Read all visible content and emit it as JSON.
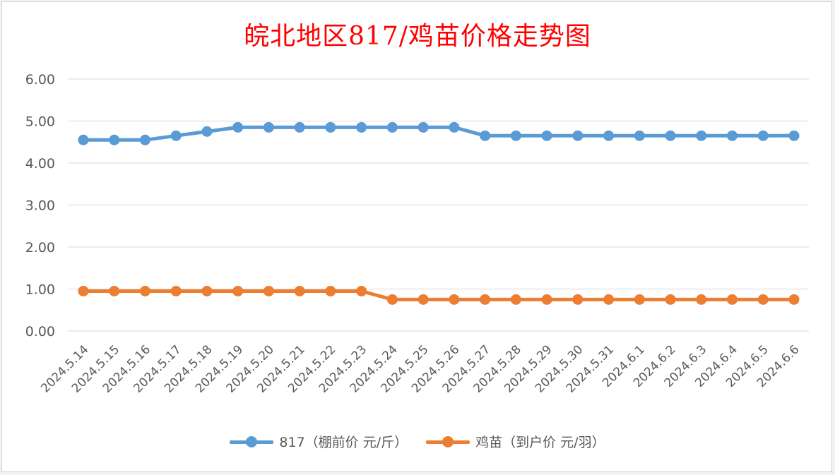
{
  "chart_data": {
    "type": "line",
    "title": "皖北地区817/鸡苗价格走势图",
    "categories": [
      "2024.5.14",
      "2024.5.15",
      "2024.5.16",
      "2024.5.17",
      "2024.5.18",
      "2024.5.19",
      "2024.5.20",
      "2024.5.21",
      "2024.5.22",
      "2024.5.23",
      "2024.5.24",
      "2024.5.25",
      "2024.5.26",
      "2024.5.27",
      "2024.5.28",
      "2024.5.29",
      "2024.5.30",
      "2024.5.31",
      "2024.6.1",
      "2024.6.2",
      "2024.6.3",
      "2024.6.4",
      "2024.6.5",
      "2024.6.6"
    ],
    "y_ticks": [
      "0.00",
      "1.00",
      "2.00",
      "3.00",
      "4.00",
      "5.00",
      "6.00"
    ],
    "ylim": [
      0,
      6
    ],
    "grid": true,
    "legend_position": "bottom",
    "series": [
      {
        "name": "817（棚前价 元/斤）",
        "color": "#5b9bd5",
        "values": [
          4.55,
          4.55,
          4.55,
          4.65,
          4.75,
          4.85,
          4.85,
          4.85,
          4.85,
          4.85,
          4.85,
          4.85,
          4.85,
          4.65,
          4.65,
          4.65,
          4.65,
          4.65,
          4.65,
          4.65,
          4.65,
          4.65,
          4.65,
          4.65
        ]
      },
      {
        "name": "鸡苗（到户价 元/羽）",
        "color": "#ed7d31",
        "values": [
          0.95,
          0.95,
          0.95,
          0.95,
          0.95,
          0.95,
          0.95,
          0.95,
          0.95,
          0.95,
          0.75,
          0.75,
          0.75,
          0.75,
          0.75,
          0.75,
          0.75,
          0.75,
          0.75,
          0.75,
          0.75,
          0.75,
          0.75,
          0.75
        ]
      }
    ]
  }
}
